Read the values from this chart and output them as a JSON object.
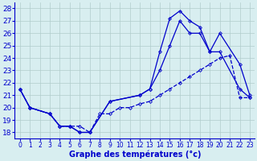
{
  "xlabel": "Graphe des températures (°c)",
  "xlim": [
    -0.5,
    23.5
  ],
  "ylim": [
    17.5,
    28.5
  ],
  "yticks": [
    18,
    19,
    20,
    21,
    22,
    23,
    24,
    25,
    26,
    27,
    28
  ],
  "xticks": [
    0,
    1,
    2,
    3,
    4,
    5,
    6,
    7,
    8,
    9,
    10,
    11,
    12,
    13,
    14,
    15,
    16,
    17,
    18,
    19,
    20,
    21,
    22,
    23
  ],
  "bg_color": "#d8eef0",
  "line_color": "#0000cc",
  "grid_color": "#b0cccc",
  "curve1": {
    "x": [
      0,
      1,
      3,
      4,
      5,
      6,
      7,
      9,
      12,
      13,
      14,
      15,
      16,
      17,
      18,
      19,
      20,
      22,
      23
    ],
    "y": [
      21.5,
      20.0,
      19.5,
      18.5,
      18.5,
      18.0,
      18.0,
      20.5,
      21.0,
      21.5,
      24.5,
      27.2,
      27.8,
      27.0,
      26.5,
      24.5,
      26.0,
      23.5,
      21.0
    ]
  },
  "curve2": {
    "x": [
      0,
      1,
      3,
      4,
      5,
      6,
      7,
      9,
      12,
      13,
      14,
      15,
      16,
      17,
      18,
      19,
      20,
      22,
      23
    ],
    "y": [
      21.5,
      20.0,
      19.5,
      18.5,
      18.5,
      18.0,
      18.0,
      20.5,
      21.0,
      21.5,
      23.0,
      25.0,
      27.0,
      26.0,
      26.0,
      24.5,
      24.5,
      21.5,
      20.8
    ]
  },
  "curve3": {
    "x": [
      0,
      1,
      3,
      4,
      5,
      6,
      7,
      8,
      9,
      10,
      11,
      12,
      13,
      14,
      15,
      16,
      17,
      18,
      19,
      20,
      21,
      22,
      23
    ],
    "y": [
      21.5,
      20.0,
      19.5,
      18.5,
      18.5,
      18.5,
      18.0,
      19.5,
      19.5,
      20.0,
      20.0,
      20.3,
      20.5,
      21.0,
      21.5,
      22.0,
      22.5,
      23.0,
      23.5,
      24.0,
      24.2,
      20.8,
      20.8
    ]
  }
}
